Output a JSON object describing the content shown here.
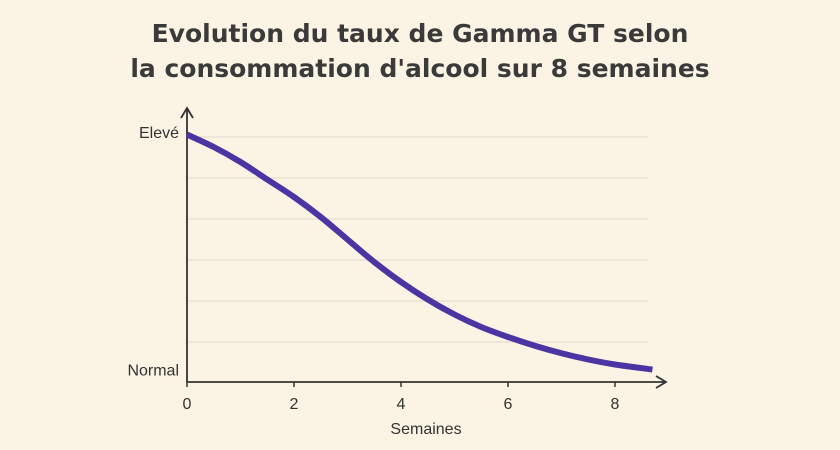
{
  "chart_data": {
    "type": "line",
    "title_lines": [
      "Evolution du taux de Gamma GT selon",
      "la consommation d'alcool sur 8 semaines"
    ],
    "xlabel": "Semaines",
    "ylabel": "",
    "x_ticks": [
      "0",
      "2",
      "4",
      "6",
      "8"
    ],
    "y_ticks": [
      {
        "label": "Normal",
        "level": 0.05
      },
      {
        "label": "Elevé",
        "level": 1.0
      }
    ],
    "xlim": [
      0,
      8.7
    ],
    "ylim": [
      0,
      1.05
    ],
    "grid": true,
    "series": [
      {
        "color": "#4a35a2",
        "x": [
          0,
          0.5,
          1,
          1.5,
          2,
          2.5,
          3,
          3.5,
          4,
          4.5,
          5,
          5.5,
          6,
          6.5,
          7,
          7.5,
          8,
          8.7
        ],
        "y": [
          0.99,
          0.94,
          0.88,
          0.81,
          0.74,
          0.66,
          0.57,
          0.48,
          0.4,
          0.33,
          0.27,
          0.22,
          0.18,
          0.145,
          0.115,
          0.09,
          0.07,
          0.05
        ]
      }
    ]
  }
}
